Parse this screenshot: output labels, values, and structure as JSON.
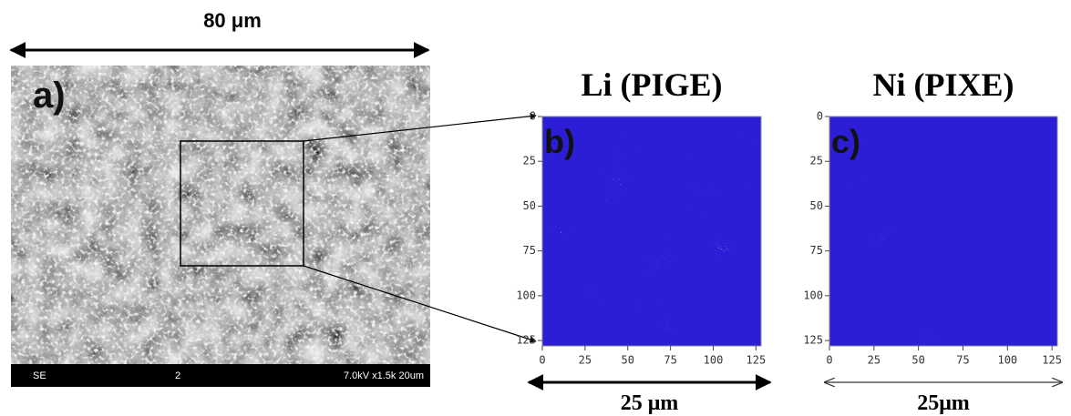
{
  "scale_label": "80 μm",
  "panels": [
    {
      "label": "a)",
      "sem_bar": {
        "mode": "SE",
        "number": "2",
        "settings": "7.0kV x1.5k 20um"
      }
    },
    {
      "label": "b)",
      "title": "Li (PIGE)",
      "xlim": [
        0,
        128
      ],
      "ylim": [
        0,
        128
      ],
      "xticks": [
        0,
        25,
        50,
        75,
        100,
        125
      ],
      "yticks": [
        0,
        25,
        50,
        75,
        100,
        125
      ],
      "scale_label": "25 μm"
    },
    {
      "label": "c)",
      "title": "Ni (PIXE)",
      "xlim": [
        0,
        128
      ],
      "ylim": [
        0,
        128
      ],
      "xticks": [
        0,
        25,
        50,
        75,
        100,
        125
      ],
      "yticks": [
        0,
        25,
        50,
        75,
        100,
        125
      ],
      "scale_label": "25μm"
    }
  ]
}
